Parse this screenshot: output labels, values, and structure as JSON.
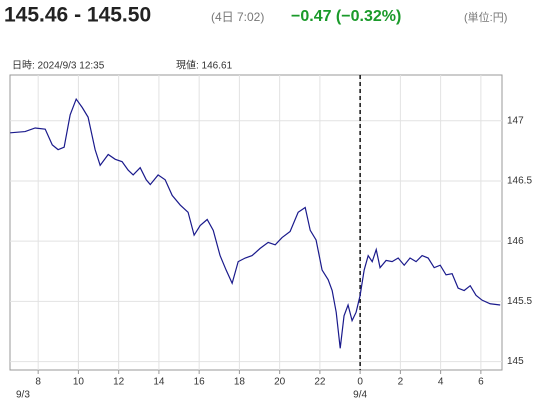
{
  "header": {
    "bid_ask": "145.46 - 145.50",
    "time": "(4日 7:02)",
    "change": "−0.47 (−0.32%)",
    "unit": "(単位:円)",
    "datetime": "日時: 2024/9/3  12:35",
    "current": "現値: 146.61"
  },
  "chart_data": {
    "type": "line",
    "x": [
      6.61,
      7.35,
      7.85,
      8.35,
      8.7,
      8.99,
      9.29,
      9.59,
      9.89,
      10.19,
      10.48,
      10.83,
      11.08,
      11.48,
      11.83,
      12.17,
      12.47,
      12.72,
      13.07,
      13.37,
      13.57,
      13.96,
      14.31,
      14.66,
      15.06,
      15.45,
      15.75,
      16.05,
      16.4,
      16.7,
      17.04,
      17.34,
      17.64,
      17.94,
      18.29,
      18.63,
      19.03,
      19.43,
      19.78,
      20.12,
      20.52,
      20.92,
      21.27,
      21.52,
      21.81,
      22.11,
      22.41,
      22.61,
      22.81,
      23.01,
      23.2,
      23.4,
      23.6,
      23.8,
      24.0,
      24.2,
      24.4,
      24.6,
      24.8,
      24.99,
      25.29,
      25.59,
      25.89,
      26.19,
      26.48,
      26.78,
      27.08,
      27.38,
      27.68,
      27.98,
      28.27,
      28.57,
      28.87,
      29.17,
      29.47,
      29.76,
      30.06,
      30.46,
      30.96
    ],
    "series": [
      {
        "color": "#1a1a8c",
        "values": [
          146.9,
          146.91,
          146.94,
          146.93,
          146.8,
          146.76,
          146.78,
          147.05,
          147.18,
          147.11,
          147.03,
          146.76,
          146.63,
          146.72,
          146.68,
          146.66,
          146.59,
          146.55,
          146.61,
          146.51,
          146.47,
          146.55,
          146.51,
          146.38,
          146.3,
          146.24,
          146.05,
          146.13,
          146.18,
          146.09,
          145.88,
          145.76,
          145.65,
          145.83,
          145.86,
          145.88,
          145.94,
          145.99,
          145.97,
          146.03,
          146.08,
          146.24,
          146.28,
          146.09,
          146.01,
          145.76,
          145.68,
          145.59,
          145.41,
          145.11,
          145.38,
          145.47,
          145.34,
          145.41,
          145.55,
          145.76,
          145.88,
          145.83,
          145.93,
          145.78,
          145.84,
          145.83,
          145.86,
          145.8,
          145.86,
          145.83,
          145.88,
          145.86,
          145.78,
          145.8,
          145.72,
          145.73,
          145.61,
          145.59,
          145.63,
          145.55,
          145.51,
          145.48,
          145.47
        ]
      }
    ],
    "xlim": [
      6.6,
      31.05
    ],
    "ylim": [
      144.93,
      147.38
    ],
    "xticks": [
      8,
      10,
      12,
      14,
      16,
      18,
      20,
      22,
      {
        "value": 24,
        "label": "0"
      },
      {
        "value": 26,
        "label": "2"
      },
      {
        "value": 28,
        "label": "4"
      },
      {
        "value": 30,
        "label": "6"
      }
    ],
    "yticks": [
      145,
      145.5,
      146,
      146.5,
      147
    ],
    "date_labels": [
      {
        "value": 6.6,
        "label": "9/3"
      },
      {
        "value": 24,
        "label": "9/4"
      }
    ],
    "grid": true
  }
}
